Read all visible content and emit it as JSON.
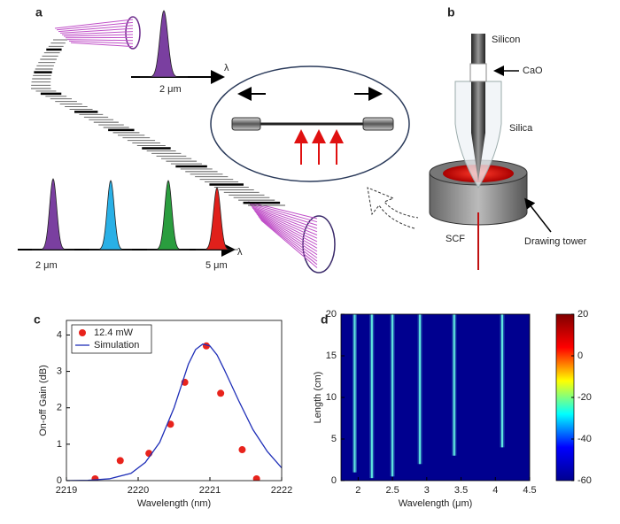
{
  "panel_labels": [
    "a",
    "b",
    "c",
    "d"
  ],
  "diagram_a": {
    "top_axis_label": "λ",
    "top_peak_label": "2 μm",
    "bottom_axis_label": "λ",
    "bottom_left_label": "2 μm",
    "bottom_right_label": "5 μm"
  },
  "diagram_b": {
    "labels": [
      "Silicon",
      "CaO",
      "Silica",
      "SCF",
      "Drawing tower"
    ]
  },
  "chart_data": [
    {
      "type": "scatter",
      "xlabel": "Wavelength (nm)",
      "ylabel": "On-off Gain (dB)",
      "xlim": [
        2219,
        2222
      ],
      "ylim": [
        0,
        4.4
      ],
      "xticks": [
        2219,
        2220,
        2221,
        2222
      ],
      "yticks": [
        0,
        1,
        2,
        3,
        4
      ],
      "legend": "upper left",
      "series": [
        {
          "name": "12.4 mW",
          "color": "#e8231c",
          "style": "markers",
          "x": [
            2219.4,
            2219.75,
            2220.15,
            2220.45,
            2220.65,
            2220.95,
            2221.15,
            2221.45,
            2221.65
          ],
          "values": [
            0.05,
            0.55,
            0.75,
            1.55,
            2.7,
            3.7,
            2.4,
            0.85,
            0.05
          ]
        },
        {
          "name": "Simulation",
          "color": "#1f2fb8",
          "style": "line",
          "x": [
            2219,
            2219.3,
            2219.6,
            2219.9,
            2220.1,
            2220.3,
            2220.5,
            2220.6,
            2220.7,
            2220.8,
            2220.9,
            2221.0,
            2221.1,
            2221.2,
            2221.4,
            2221.6,
            2221.8,
            2222
          ],
          "values": [
            0,
            0.01,
            0.05,
            0.2,
            0.5,
            1.05,
            2.0,
            2.6,
            3.2,
            3.6,
            3.75,
            3.7,
            3.45,
            3.05,
            2.2,
            1.4,
            0.8,
            0.35
          ]
        }
      ]
    },
    {
      "type": "heatmap",
      "xlabel": "Wavelength (μm)",
      "ylabel": "Length (cm)",
      "xlim": [
        1.75,
        4.5
      ],
      "ylim": [
        0,
        20
      ],
      "xticks": [
        2,
        2.5,
        3,
        3.5,
        4,
        4.5
      ],
      "yticks": [
        0,
        5,
        10,
        15,
        20
      ],
      "x": [
        1.95,
        2.2,
        2.5,
        2.9,
        3.4,
        4.1
      ],
      "values": [
        1,
        0.3,
        0.5,
        2,
        3,
        4
      ],
      "line_color": "#5fe8e0",
      "background_color": "#00008f",
      "clim": [
        -60,
        20
      ],
      "cticks": [
        -60,
        -40,
        -20,
        0,
        20
      ],
      "colormap": [
        "#00008f",
        "#0000ff",
        "#00ffff",
        "#ffff00",
        "#ff0000",
        "#800000"
      ]
    }
  ]
}
